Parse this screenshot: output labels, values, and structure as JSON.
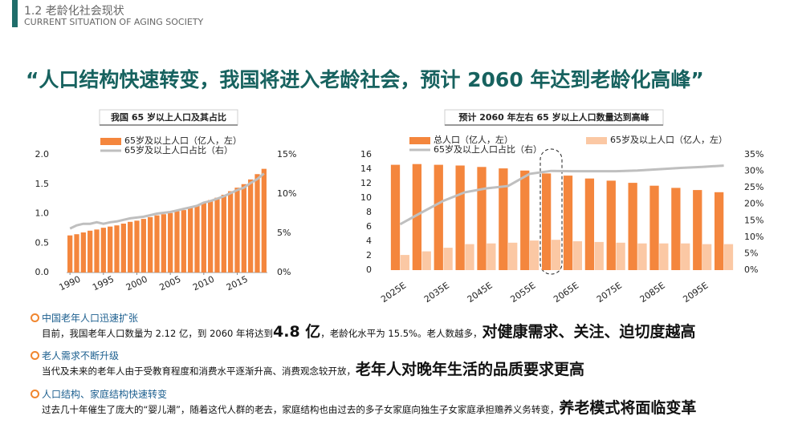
{
  "header": {
    "section": "1.2 老龄化社会现状",
    "subtitle": "CURRENT SITUATION OF AGING SOCIETY"
  },
  "headline": "“人口结构快速转变，我国将进入老龄社会，预计 2060 年达到老龄化高峰”",
  "chart_data": [
    {
      "type": "combo",
      "title": "我国 65 岁以上人口及其占比",
      "x": [
        1990,
        1991,
        1992,
        1993,
        1994,
        1995,
        1996,
        1997,
        1998,
        1999,
        2000,
        2001,
        2002,
        2003,
        2004,
        2005,
        2006,
        2007,
        2008,
        2009,
        2010,
        2011,
        2012,
        2013,
        2014,
        2015,
        2016,
        2017,
        2018,
        2019
      ],
      "xlim": [
        1989.5,
        2019.5
      ],
      "xticks": [
        1990,
        1995,
        2000,
        2005,
        2010,
        2015
      ],
      "ylim": [
        0,
        2
      ],
      "yticks": [
        {
          "value": 0,
          "label": "0.0"
        },
        {
          "value": 0.5,
          "label": "0.5"
        },
        {
          "value": 1,
          "label": "1.0"
        },
        {
          "value": 1.5,
          "label": "1.5"
        },
        {
          "value": 2,
          "label": "2.0"
        }
      ],
      "y2lim": [
        0,
        15
      ],
      "y2ticks": [
        {
          "value": 0,
          "label": "0%"
        },
        {
          "value": 5,
          "label": "5%"
        },
        {
          "value": 10,
          "label": "10%"
        },
        {
          "value": 15,
          "label": "15%"
        }
      ],
      "series": [
        {
          "name": "65岁及以上人口（亿人，左）",
          "type": "bar",
          "color": "#f4863d",
          "values": [
            0.63,
            0.65,
            0.68,
            0.71,
            0.73,
            0.76,
            0.78,
            0.8,
            0.83,
            0.86,
            0.88,
            0.91,
            0.94,
            0.97,
            0.99,
            1.01,
            1.04,
            1.06,
            1.1,
            1.13,
            1.19,
            1.23,
            1.27,
            1.32,
            1.38,
            1.44,
            1.5,
            1.58,
            1.67,
            1.76
          ]
        },
        {
          "name": "65岁及以上人口占比（右）",
          "type": "line",
          "axis": "y2",
          "color": "#bfbfbf",
          "values": [
            5.6,
            6.0,
            6.2,
            6.2,
            6.4,
            6.2,
            6.4,
            6.5,
            6.7,
            6.9,
            7.0,
            7.1,
            7.3,
            7.5,
            7.6,
            7.7,
            7.9,
            8.1,
            8.3,
            8.5,
            8.9,
            9.1,
            9.4,
            9.7,
            10.1,
            10.5,
            10.8,
            11.4,
            11.9,
            12.6
          ]
        }
      ]
    },
    {
      "type": "combo",
      "title": "预计 2060 年左右 65 岁以上人口数量达到高峰",
      "categories": [
        "2025E",
        null,
        "2035E",
        null,
        "2045E",
        null,
        "2055E",
        null,
        "2065E",
        null,
        "2075E",
        null,
        "2085E",
        null,
        "2095E",
        null
      ],
      "ylim": [
        0,
        16
      ],
      "yticks": [
        0,
        2,
        4,
        6,
        8,
        10,
        12,
        14,
        16
      ],
      "y2lim": [
        0,
        35
      ],
      "y2ticks": [
        {
          "value": 0,
          "label": "0%"
        },
        {
          "value": 5,
          "label": "5%"
        },
        {
          "value": 10,
          "label": "10%"
        },
        {
          "value": 15,
          "label": "15%"
        },
        {
          "value": 20,
          "label": "20%"
        },
        {
          "value": 25,
          "label": "25%"
        },
        {
          "value": 30,
          "label": "30%"
        },
        {
          "value": 35,
          "label": "35%"
        }
      ],
      "series": [
        {
          "name": "总人口（亿人，左）",
          "type": "bar",
          "color": "#f4863d",
          "values": [
            14.6,
            14.7,
            14.6,
            14.5,
            14.3,
            14.1,
            13.8,
            13.4,
            13.1,
            12.7,
            12.4,
            12.1,
            11.7,
            11.4,
            11.1,
            10.8
          ]
        },
        {
          "name": "65岁及以上人口（亿人，左）",
          "type": "bar",
          "color": "#fbc8a4",
          "values": [
            2.1,
            2.6,
            3.1,
            3.6,
            3.7,
            3.8,
            4.1,
            4.2,
            4.0,
            3.9,
            3.8,
            3.7,
            3.7,
            3.7,
            3.6,
            3.6
          ]
        },
        {
          "name": "65岁及以上人口占比（右）",
          "type": "line",
          "axis": "y2",
          "color": "#bfbfbf",
          "values": [
            13.9,
            17.5,
            21.0,
            23.6,
            24.8,
            25.5,
            29.2,
            30.1,
            30.0,
            30.0,
            30.0,
            30.2,
            30.6,
            31.0,
            31.3,
            31.7
          ]
        }
      ]
    }
  ],
  "points": [
    {
      "heading": "中国老年人口迅速扩张",
      "body": [
        {
          "text": "目前，我国老年人口数量为 2.12 亿，到 2060 年将达到",
          "emphasis": false
        },
        {
          "text": "4.8 亿",
          "emphasis": true
        },
        {
          "text": "，老龄化水平为 15.5%。老人数越多，",
          "emphasis": false
        },
        {
          "text": "对健康需求、关注、迫切度越高",
          "emphasis": true
        }
      ]
    },
    {
      "heading": "老人需求不断升级",
      "body": [
        {
          "text": "当代及未来的老年人由于受教育程度和消费水平逐渐升高、消费观念较开放，",
          "emphasis": false
        },
        {
          "text": "老年人对晚年生活的品质要求更高",
          "emphasis": true
        }
      ]
    },
    {
      "heading": "人口结构、家庭结构快速转变",
      "body": [
        {
          "text": "过去几十年催生了庞大的“婴儿潮”，随着这代人群的老去，家庭结构也由过去的多子女家庭向独生子女家庭承担赡养义务转变，",
          "emphasis": false
        },
        {
          "text": "养老模式将面临变革",
          "emphasis": true
        }
      ]
    }
  ]
}
